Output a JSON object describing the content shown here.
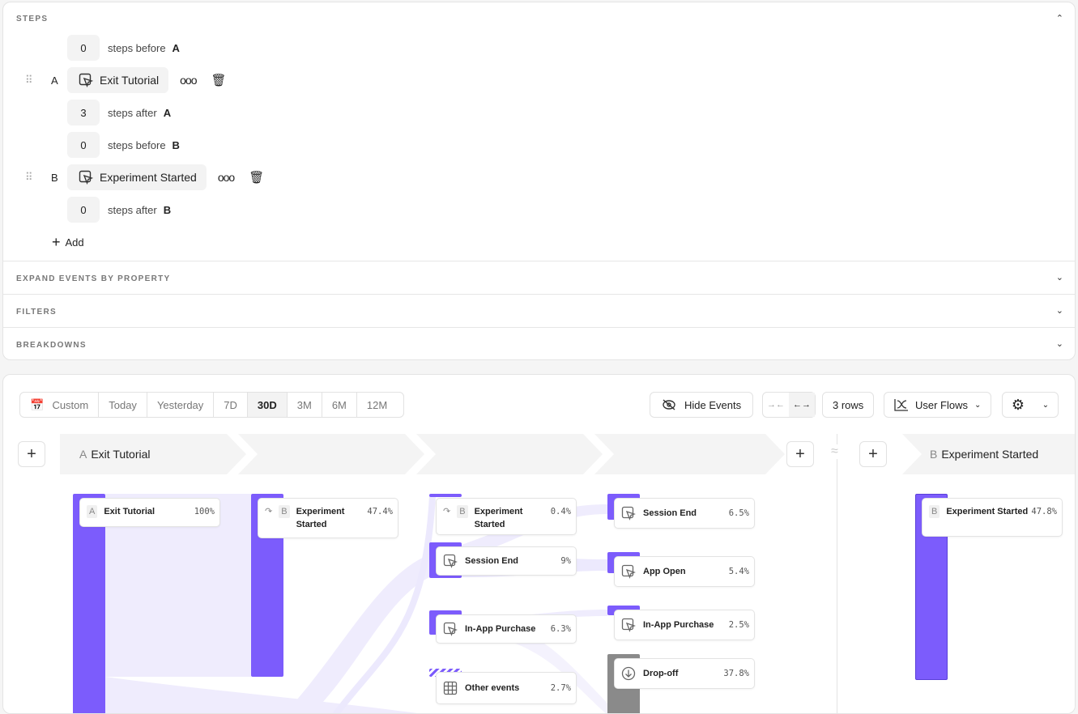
{
  "steps": {
    "title": "STEPS",
    "rows": [
      {
        "type": "count",
        "value": "0",
        "text": "steps before",
        "letter": "A"
      },
      {
        "type": "event",
        "letter": "A",
        "event": "Exit Tutorial"
      },
      {
        "type": "count",
        "value": "3",
        "text": "steps after",
        "letter": "A"
      },
      {
        "type": "count",
        "value": "0",
        "text": "steps before",
        "letter": "B"
      },
      {
        "type": "event",
        "letter": "B",
        "event": "Experiment Started"
      },
      {
        "type": "count",
        "value": "0",
        "text": "steps after",
        "letter": "B"
      }
    ],
    "add_label": "Add"
  },
  "sections": [
    "EXPAND EVENTS BY PROPERTY",
    "FILTERS",
    "BREAKDOWNS"
  ],
  "date_range": {
    "options": [
      "Custom",
      "Today",
      "Yesterday",
      "7D",
      "30D",
      "3M",
      "6M",
      "12M"
    ],
    "selected": "30D"
  },
  "toolbar": {
    "hide_events": "Hide Events",
    "rows": "3 rows",
    "chart_type": "User Flows"
  },
  "headers": {
    "a_letter": "A",
    "a_event": "Exit Tutorial",
    "b_letter": "B",
    "b_event": "Experiment Started"
  },
  "colors": {
    "accent": "#7c5cfc",
    "flow": "#ece9fd",
    "dropoff": "#8a8a8a"
  },
  "nodes": [
    {
      "name": "Exit Tutorial",
      "badge": "A",
      "pct": "100%",
      "icon": "none"
    },
    {
      "name": "Experiment Started",
      "badge": "B",
      "pct": "47.4%",
      "icon": "redirect"
    },
    {
      "name": "Experiment Started",
      "badge": "B",
      "pct": "0.4%",
      "icon": "redirect"
    },
    {
      "name": "Session End",
      "pct": "9%",
      "icon": "cursor"
    },
    {
      "name": "In-App Purchase",
      "pct": "6.3%",
      "icon": "cursor"
    },
    {
      "name": "Other events",
      "pct": "2.7%",
      "icon": "grid"
    },
    {
      "name": "Session End",
      "pct": "6.5%",
      "icon": "cursor"
    },
    {
      "name": "App Open",
      "pct": "5.4%",
      "icon": "cursor"
    },
    {
      "name": "In-App Purchase",
      "pct": "2.5%",
      "icon": "cursor"
    },
    {
      "name": "Drop-off",
      "pct": "37.8%",
      "icon": "drop"
    },
    {
      "name": "Experiment Started",
      "badge": "B",
      "pct": "47.8%",
      "icon": "none"
    }
  ]
}
